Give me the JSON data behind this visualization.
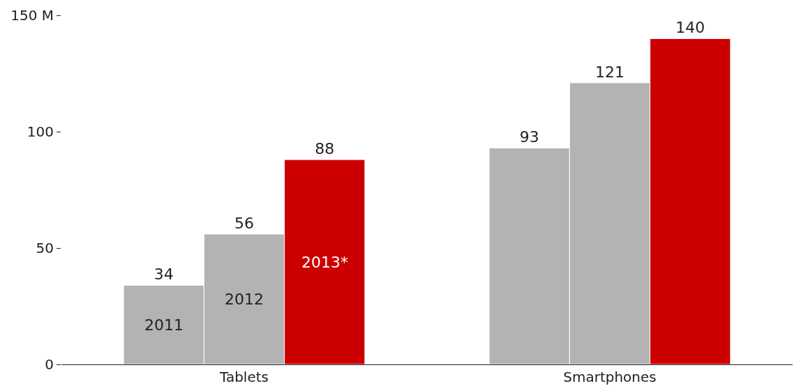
{
  "chart_data": {
    "type": "bar",
    "categories": [
      "Tablets",
      "Smartphones"
    ],
    "series": [
      {
        "name": "2011",
        "color": "#b3b3b3",
        "values": [
          34,
          93
        ]
      },
      {
        "name": "2012",
        "color": "#b3b3b3",
        "values": [
          56,
          121
        ]
      },
      {
        "name": "2013*",
        "color": "#cc0000",
        "values": [
          88,
          140
        ]
      }
    ],
    "ylim": [
      0,
      150
    ],
    "yticks": [
      0,
      50,
      100,
      {
        "value": 150,
        "label": "150 M"
      }
    ],
    "data_labels": true,
    "legend": false
  }
}
